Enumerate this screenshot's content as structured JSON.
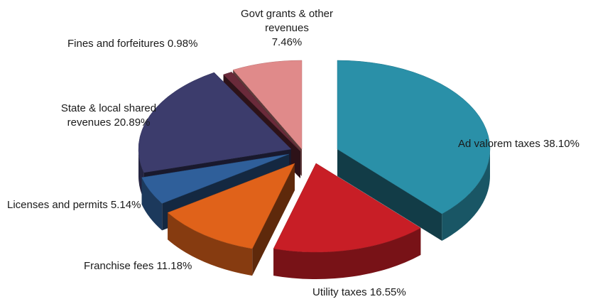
{
  "chart_data": {
    "type": "pie",
    "title": "",
    "slices": [
      {
        "name": "Ad valorem taxes",
        "value": 38.1,
        "label_line1": "Ad valorem taxes 38.10%",
        "label_line2": "",
        "label_line3": "",
        "color": "#2a90a8"
      },
      {
        "name": "Utility taxes",
        "value": 16.55,
        "label_line1": "Utility taxes 16.55%",
        "label_line2": "",
        "label_line3": "",
        "color": "#c81e26"
      },
      {
        "name": "Franchise fees",
        "value": 11.18,
        "label_line1": "Franchise fees 11.18%",
        "label_line2": "",
        "label_line3": "",
        "color": "#e0621a"
      },
      {
        "name": "Licenses and permits",
        "value": 5.14,
        "label_line1": "Licenses and permits 5.14%",
        "label_line2": "",
        "label_line3": "",
        "color": "#2f5f9a"
      },
      {
        "name": "State & local shared revenues",
        "value": 20.89,
        "label_line1": "State & local shared",
        "label_line2": "revenues 20.89%",
        "label_line3": "",
        "color": "#3c3c6c"
      },
      {
        "name": "Fines and forfeitures",
        "value": 0.98,
        "label_line1": "Fines and forfeitures 0.98%",
        "label_line2": "",
        "label_line3": "",
        "color": "#6a2a3a"
      },
      {
        "name": "Govt grants & other revenues",
        "value": 7.46,
        "label_line1": "Govt grants & other",
        "label_line2": "revenues",
        "label_line3": "7.46%",
        "color": "#e08a8a"
      }
    ]
  }
}
